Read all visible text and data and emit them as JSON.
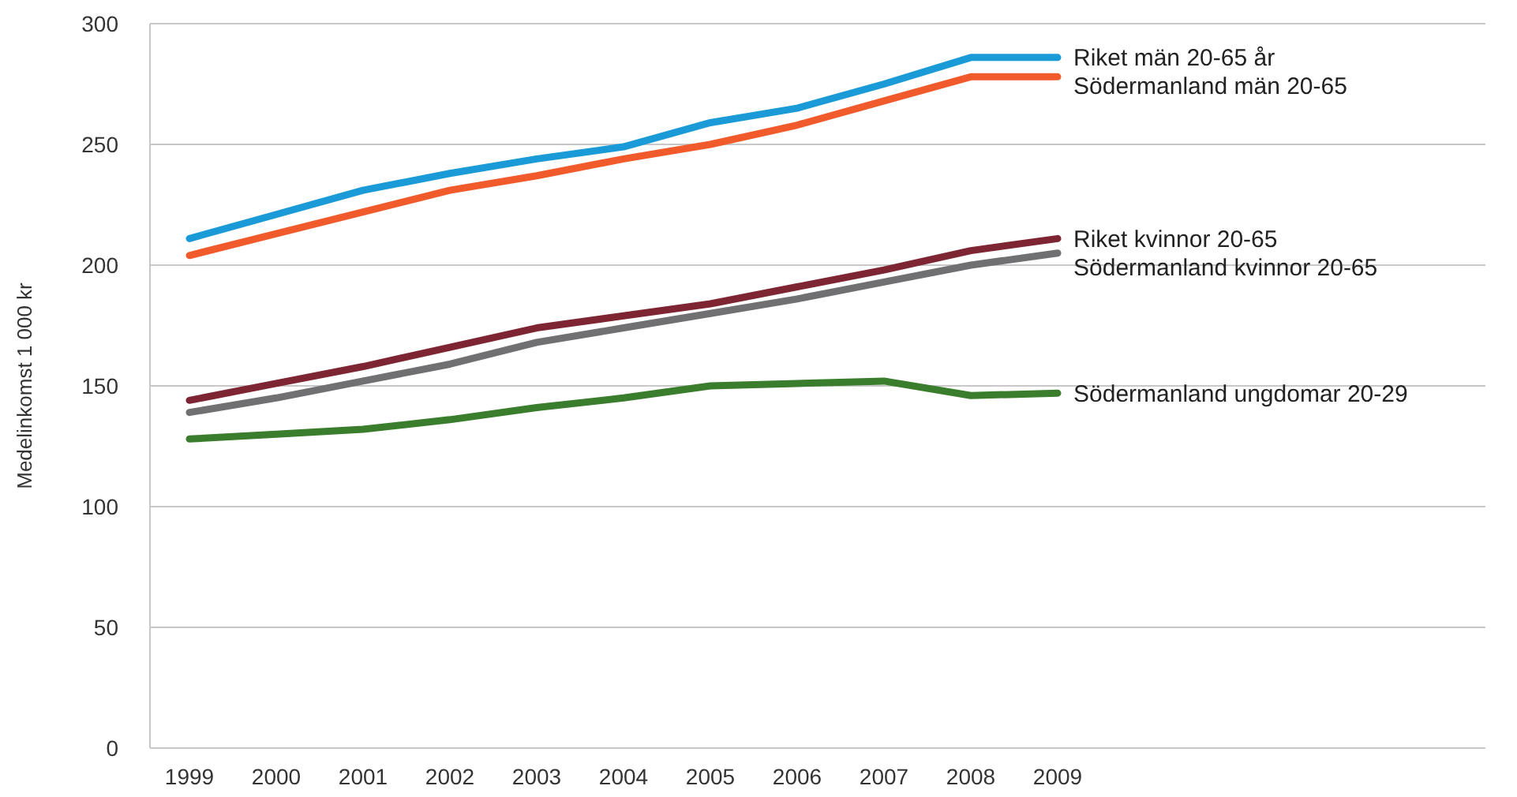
{
  "chart_data": {
    "type": "line",
    "ylabel": "Medelinkomst 1 000 kr",
    "categories": [
      "1999",
      "2000",
      "2001",
      "2002",
      "2003",
      "2004",
      "2005",
      "2006",
      "2007",
      "2008",
      "2009"
    ],
    "series": [
      {
        "name": "Riket män 20-65 år",
        "color": "#1a9bd7",
        "values": [
          211,
          221,
          231,
          238,
          244,
          249,
          259,
          265,
          275,
          286,
          286
        ]
      },
      {
        "name": "Södermanland män 20-65",
        "color": "#f15a2b",
        "values": [
          204,
          213,
          222,
          231,
          237,
          244,
          250,
          258,
          268,
          278,
          278
        ]
      },
      {
        "name": "Riket kvinnor 20-65",
        "color": "#7d2532",
        "values": [
          144,
          151,
          158,
          166,
          174,
          179,
          184,
          191,
          198,
          206,
          211
        ]
      },
      {
        "name": "Södermanland kvinnor 20-65",
        "color": "#707072",
        "values": [
          139,
          145,
          152,
          159,
          168,
          174,
          180,
          186,
          193,
          200,
          205
        ]
      },
      {
        "name": "Södermanland ungdomar 20-29",
        "color": "#3a7d2c",
        "values": [
          128,
          130,
          132,
          136,
          141,
          145,
          150,
          151,
          152,
          146,
          147
        ]
      }
    ],
    "ylim": [
      0,
      300
    ],
    "yticks": [
      0,
      50,
      100,
      150,
      200,
      250,
      300
    ],
    "grid": "y",
    "legend": "right",
    "line_style": "solid"
  }
}
